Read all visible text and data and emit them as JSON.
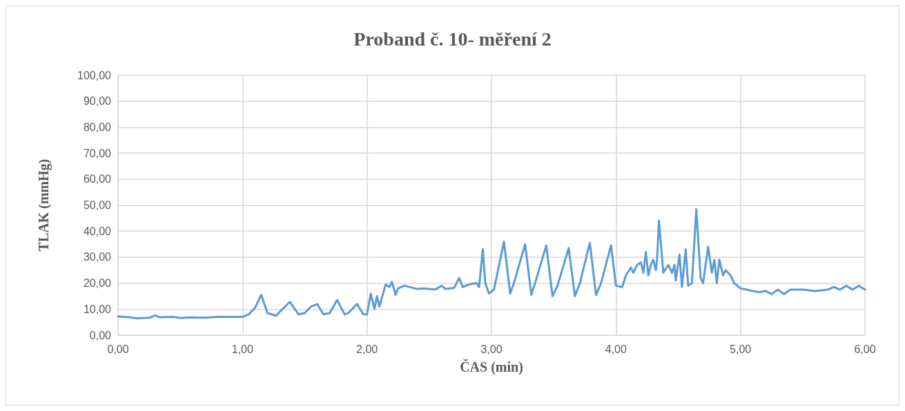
{
  "chart_data": {
    "type": "line",
    "title": "Proband č. 10- měření 2",
    "xlabel": "ČAS (min)",
    "ylabel": "TLAK (mmHg)",
    "x": [
      0,
      0.1,
      0.15,
      0.25,
      0.3,
      0.33,
      0.45,
      0.5,
      0.6,
      0.7,
      0.8,
      0.9,
      1.0,
      1.05,
      1.1,
      1.15,
      1.2,
      1.27,
      1.3,
      1.38,
      1.45,
      1.5,
      1.55,
      1.6,
      1.65,
      1.7,
      1.76,
      1.82,
      1.85,
      1.92,
      1.97,
      2.0,
      2.03,
      2.06,
      2.08,
      2.1,
      2.15,
      2.18,
      2.2,
      2.23,
      2.25,
      2.3,
      2.4,
      2.45,
      2.55,
      2.6,
      2.63,
      2.7,
      2.74,
      2.77,
      2.82,
      2.88,
      2.9,
      2.93,
      2.95,
      2.98,
      3.02,
      3.1,
      3.15,
      3.18,
      3.27,
      3.32,
      3.35,
      3.44,
      3.49,
      3.53,
      3.62,
      3.67,
      3.71,
      3.79,
      3.84,
      3.88,
      3.96,
      4.0,
      4.05,
      4.08,
      4.12,
      4.14,
      4.17,
      4.2,
      4.22,
      4.24,
      4.26,
      4.28,
      4.3,
      4.32,
      4.33,
      4.345,
      4.37,
      4.38,
      4.42,
      4.45,
      4.47,
      4.48,
      4.51,
      4.53,
      4.56,
      4.58,
      4.61,
      4.645,
      4.68,
      4.7,
      4.74,
      4.77,
      4.79,
      4.81,
      4.83,
      4.86,
      4.88,
      4.92,
      4.95,
      5.0,
      5.05,
      5.1,
      5.15,
      5.2,
      5.25,
      5.3,
      5.35,
      5.4,
      5.5,
      5.6,
      5.7,
      5.75,
      5.8,
      5.85,
      5.9,
      5.95,
      6.0
    ],
    "series": [
      {
        "color": "#5b9bd5",
        "values": [
          7.2,
          6.8,
          6.5,
          6.7,
          7.6,
          6.9,
          7,
          6.6,
          6.8,
          6.7,
          7,
          7,
          7,
          8,
          10.5,
          15.5,
          8.5,
          7.5,
          9,
          12.8,
          8,
          8.5,
          11,
          12,
          8,
          8.5,
          13.5,
          8,
          8.5,
          12,
          8,
          8,
          16,
          10,
          15,
          11,
          19.5,
          18.5,
          20.5,
          15.5,
          18,
          19,
          17.8,
          18,
          17.6,
          19,
          17.8,
          18.2,
          22,
          18.5,
          19.5,
          20,
          18.5,
          33,
          20,
          16,
          17.5,
          36,
          16,
          20,
          35,
          15.5,
          20,
          34.5,
          15,
          19,
          33.5,
          15,
          20,
          35.5,
          15.5,
          20,
          34.5,
          19,
          18.5,
          23,
          26,
          24,
          27,
          28,
          24,
          32,
          23,
          27,
          29,
          25,
          29,
          44,
          30,
          24,
          27,
          24,
          27,
          21,
          31,
          18.5,
          33,
          19,
          20,
          48.5,
          22,
          20,
          34,
          24,
          29,
          20,
          29,
          23,
          25,
          23,
          20,
          18,
          17.5,
          17,
          16.5,
          17,
          15.8,
          17.5,
          15.8,
          17.5,
          17.5,
          17,
          17.5,
          18.5,
          17.5,
          19,
          17.5,
          19,
          17.5
        ]
      }
    ],
    "xlim": [
      0,
      6
    ],
    "xticks": [
      {
        "value": 0,
        "label": "0,00"
      },
      {
        "value": 1,
        "label": "1,00"
      },
      {
        "value": 2,
        "label": "2,00"
      },
      {
        "value": 3,
        "label": "3,00"
      },
      {
        "value": 4,
        "label": "4,00"
      },
      {
        "value": 5,
        "label": "5,00"
      },
      {
        "value": 6,
        "label": "6,00"
      }
    ],
    "ylim": [
      0,
      100
    ],
    "yticks": [
      {
        "value": 0,
        "label": "0,00"
      },
      {
        "value": 10,
        "label": "10,00"
      },
      {
        "value": 20,
        "label": "20,00"
      },
      {
        "value": 30,
        "label": "30,00"
      },
      {
        "value": 40,
        "label": "40,00"
      },
      {
        "value": 50,
        "label": "50,00"
      },
      {
        "value": 60,
        "label": "60,00"
      },
      {
        "value": 70,
        "label": "70,00"
      },
      {
        "value": 80,
        "label": "80,00"
      },
      {
        "value": 90,
        "label": "90,00"
      },
      {
        "value": 100,
        "label": "100,00"
      }
    ],
    "grid": true,
    "marker": "none",
    "line_style": "solid"
  }
}
